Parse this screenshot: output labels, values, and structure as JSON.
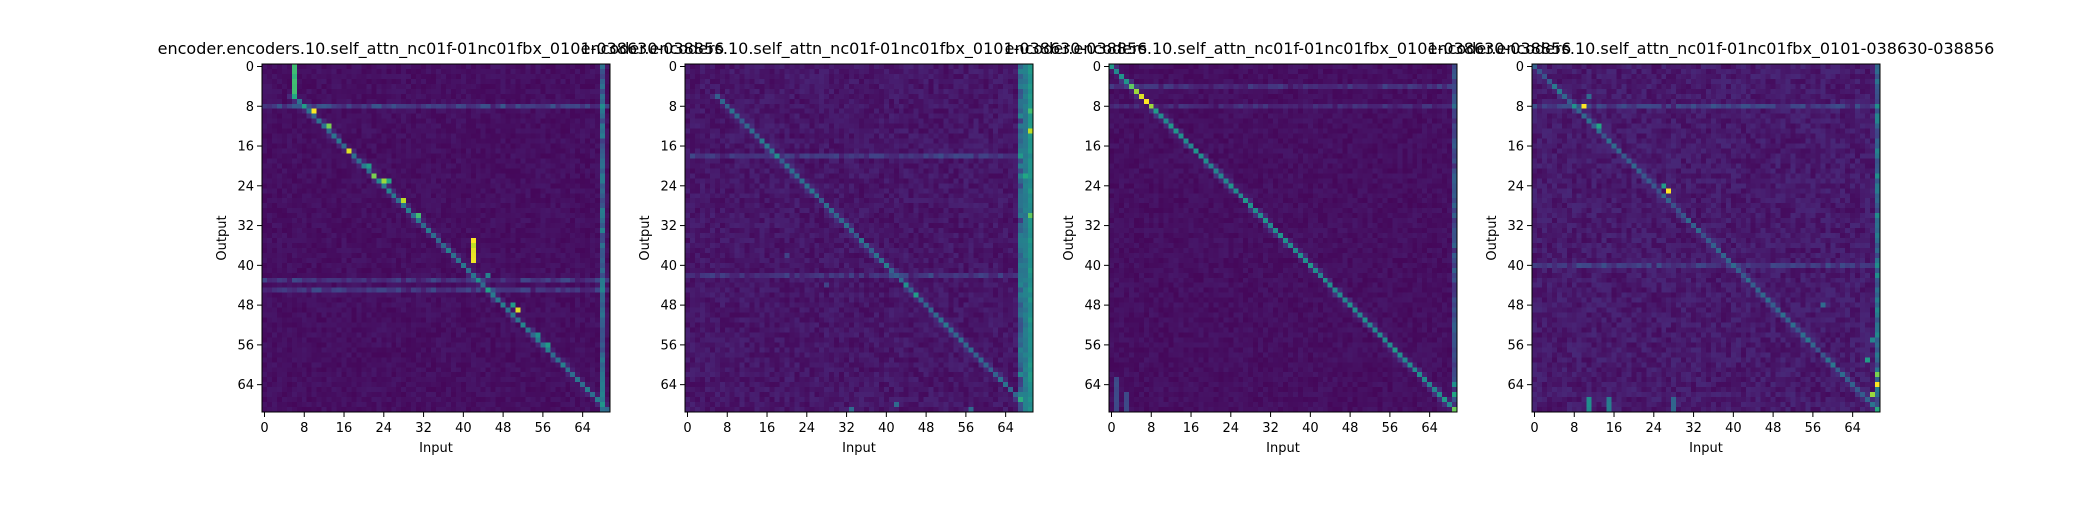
{
  "figure": {
    "background": "#ffffff",
    "colormap": "viridis"
  },
  "chart_data": [
    {
      "type": "heatmap",
      "title": "encoder.encoders.10.self_attn_nc01f-01nc01fbx_0101-038630-038856",
      "xlabel": "Input",
      "ylabel": "Output",
      "x_ticks": [
        0,
        8,
        16,
        24,
        32,
        40,
        48,
        56,
        64
      ],
      "y_ticks": [
        0,
        8,
        16,
        24,
        32,
        40,
        48,
        56,
        64
      ],
      "n_inputs": 70,
      "n_outputs": 70,
      "base_level": 0.04,
      "grid": false,
      "colorbar": false,
      "diagonal": {
        "start_x": 6,
        "end_x": 70,
        "strength": 0.35,
        "noise": 0.15
      },
      "hotspots": [
        {
          "x": 6,
          "y0": 0,
          "y1": 7,
          "value": 0.7
        },
        {
          "x": 10,
          "y": 9,
          "value": 1.0
        },
        {
          "x": 13,
          "y": 12,
          "value": 0.8
        },
        {
          "x": 17,
          "y": 17,
          "value": 0.95
        },
        {
          "x": 21,
          "y": 20,
          "value": 0.55
        },
        {
          "x": 22,
          "y": 22,
          "value": 0.8
        },
        {
          "x": 24,
          "y": 23,
          "value": 0.85
        },
        {
          "x": 25,
          "y": 23,
          "value": 0.6
        },
        {
          "x": 28,
          "y": 27,
          "value": 0.9
        },
        {
          "x": 31,
          "y": 30,
          "value": 0.7
        },
        {
          "x": 42,
          "y0": 35,
          "y1": 40,
          "value": 1.0
        },
        {
          "x": 45,
          "y": 42,
          "value": 0.45
        },
        {
          "x": 50,
          "y": 48,
          "value": 0.55
        },
        {
          "x": 51,
          "y": 49,
          "value": 0.95
        },
        {
          "x": 55,
          "y": 54,
          "value": 0.5
        },
        {
          "x": 57,
          "y": 56,
          "value": 0.55
        },
        {
          "x": 68,
          "y0": 62,
          "y1": 68,
          "value": 0.45
        }
      ],
      "stripes": [
        {
          "column": 68,
          "value": 0.3
        },
        {
          "row": 8,
          "value": 0.2
        },
        {
          "row": 43,
          "value": 0.15
        },
        {
          "row": 45,
          "value": 0.15
        }
      ]
    },
    {
      "type": "heatmap",
      "title": "encoder.encoders.10.self_attn_nc01f-01nc01fbx_0101-038630-038856",
      "xlabel": "Input",
      "ylabel": "Output",
      "x_ticks": [
        0,
        8,
        16,
        24,
        32,
        40,
        48,
        56,
        64
      ],
      "y_ticks": [
        0,
        8,
        16,
        24,
        32,
        40,
        48,
        56,
        64
      ],
      "n_inputs": 70,
      "n_outputs": 70,
      "base_level": 0.06,
      "grid": false,
      "colorbar": false,
      "diagonal": {
        "start_x": 6,
        "end_x": 70,
        "strength": 0.28,
        "noise": 0.2
      },
      "hotspots": [
        {
          "x": 68,
          "y0": 0,
          "y1": 70,
          "value": 0.45
        },
        {
          "x": 69,
          "y0": 0,
          "y1": 70,
          "value": 0.55
        },
        {
          "x": 69,
          "y": 13,
          "value": 0.9
        },
        {
          "x": 69,
          "y": 9,
          "value": 0.7
        },
        {
          "x": 69,
          "y": 30,
          "value": 0.75
        },
        {
          "x": 68,
          "y": 22,
          "value": 0.6
        },
        {
          "x": 44,
          "y": 44,
          "value": 0.5
        },
        {
          "x": 46,
          "y": 46,
          "value": 0.55
        },
        {
          "x": 33,
          "y": 69,
          "value": 0.35
        },
        {
          "x": 42,
          "y": 68,
          "value": 0.35
        },
        {
          "x": 57,
          "y": 69,
          "value": 0.35
        },
        {
          "x": 20,
          "y": 38,
          "value": 0.2
        },
        {
          "x": 28,
          "y": 44,
          "value": 0.2
        }
      ],
      "stripes": [
        {
          "column": 67,
          "value": 0.3
        },
        {
          "row": 18,
          "value": 0.12
        },
        {
          "row": 42,
          "value": 0.12
        }
      ]
    },
    {
      "type": "heatmap",
      "title": "encoder.encoders.10.self_attn_nc01f-01nc01fbx_0101-038630-038856",
      "xlabel": "Input",
      "ylabel": "Output",
      "x_ticks": [
        0,
        8,
        16,
        24,
        32,
        40,
        48,
        56,
        64
      ],
      "y_ticks": [
        0,
        8,
        16,
        24,
        32,
        40,
        48,
        56,
        64
      ],
      "n_inputs": 70,
      "n_outputs": 70,
      "base_level": 0.04,
      "grid": false,
      "colorbar": false,
      "diagonal": {
        "start_x": 0,
        "end_x": 70,
        "strength": 0.45,
        "noise": 0.1
      },
      "hotspots": [
        {
          "x": 4,
          "y": 4,
          "value": 0.75
        },
        {
          "x": 5,
          "y": 5,
          "value": 0.85
        },
        {
          "x": 6,
          "y": 6,
          "value": 0.95
        },
        {
          "x": 7,
          "y": 7,
          "value": 1.0
        },
        {
          "x": 8,
          "y": 8,
          "value": 0.85
        },
        {
          "x": 9,
          "y": 9,
          "value": 0.55
        },
        {
          "x": 14,
          "y": 14,
          "value": 0.5
        },
        {
          "x": 51,
          "y": 51,
          "value": 0.5
        },
        {
          "x": 57,
          "y": 57,
          "value": 0.5
        },
        {
          "x": 67,
          "y": 67,
          "value": 0.55
        },
        {
          "x": 69,
          "y": 64,
          "value": 0.5
        },
        {
          "x": 69,
          "y": 66,
          "value": 0.6
        },
        {
          "x": 1,
          "y0": 63,
          "y1": 70,
          "value": 0.25
        },
        {
          "x": 3,
          "y0": 66,
          "y1": 70,
          "value": 0.25
        }
      ],
      "stripes": [
        {
          "column": 69,
          "value": 0.2
        },
        {
          "row": 4,
          "value": 0.12
        },
        {
          "row": 8,
          "value": 0.1
        }
      ]
    },
    {
      "type": "heatmap",
      "title": "encoder.encoders.10.self_attn_nc01f-01nc01fbx_0101-038630-038856",
      "xlabel": "Input",
      "ylabel": "Output",
      "x_ticks": [
        0,
        8,
        16,
        24,
        32,
        40,
        48,
        56,
        64
      ],
      "y_ticks": [
        0,
        8,
        16,
        24,
        32,
        40,
        48,
        56,
        64
      ],
      "n_inputs": 70,
      "n_outputs": 70,
      "base_level": 0.07,
      "grid": false,
      "colorbar": false,
      "diagonal": {
        "start_x": 0,
        "end_x": 70,
        "strength": 0.25,
        "noise": 0.25
      },
      "hotspots": [
        {
          "x": 10,
          "y": 8,
          "value": 1.0
        },
        {
          "x": 13,
          "y": 12,
          "value": 0.6
        },
        {
          "x": 11,
          "y": 6,
          "value": 0.35
        },
        {
          "x": 27,
          "y": 25,
          "value": 1.0
        },
        {
          "x": 26,
          "y": 24,
          "value": 0.55
        },
        {
          "x": 69,
          "y": 64,
          "value": 1.0
        },
        {
          "x": 68,
          "y": 66,
          "value": 0.85
        },
        {
          "x": 69,
          "y": 62,
          "value": 0.8
        },
        {
          "x": 67,
          "y": 59,
          "value": 0.55
        },
        {
          "x": 68,
          "y": 55,
          "value": 0.45
        },
        {
          "x": 69,
          "y": 50,
          "value": 0.4
        },
        {
          "x": 11,
          "y0": 67,
          "y1": 70,
          "value": 0.5
        },
        {
          "x": 15,
          "y0": 67,
          "y1": 70,
          "value": 0.45
        },
        {
          "x": 28,
          "y0": 67,
          "y1": 70,
          "value": 0.35
        },
        {
          "x": 58,
          "y": 48,
          "value": 0.35
        }
      ],
      "stripes": [
        {
          "column": 69,
          "value": 0.3
        },
        {
          "row": 8,
          "value": 0.15
        },
        {
          "row": 40,
          "value": 0.12
        }
      ]
    }
  ]
}
